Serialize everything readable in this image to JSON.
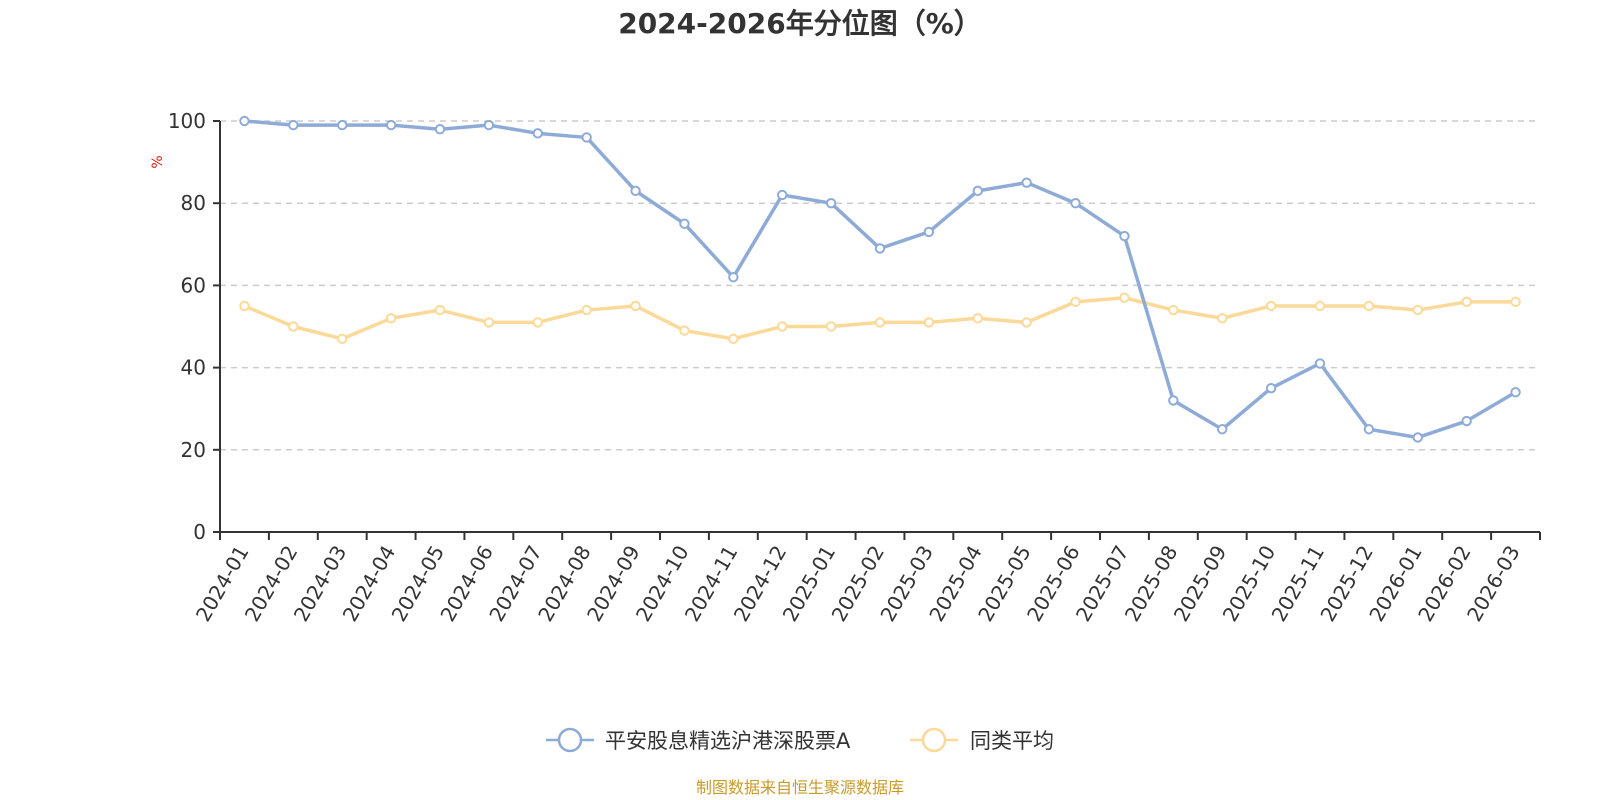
{
  "chart_data": {
    "type": "line",
    "title": "2024-2026年分位图（%）",
    "ylabel": "%",
    "xlabel": "",
    "ylim": [
      0,
      100
    ],
    "yticks": [
      0,
      20,
      40,
      60,
      80,
      100
    ],
    "grid": true,
    "legend_position": "bottom-center",
    "categories": [
      "2024-01",
      "2024-02",
      "2024-03",
      "2024-04",
      "2024-05",
      "2024-06",
      "2024-07",
      "2024-08",
      "2024-09",
      "2024-10",
      "2024-11",
      "2024-12",
      "2025-01",
      "2025-02",
      "2025-03",
      "2025-04",
      "2025-05",
      "2025-06",
      "2025-07",
      "2025-08",
      "2025-09",
      "2025-10",
      "2025-11",
      "2025-12",
      "2026-01",
      "2026-02",
      "2026-03"
    ],
    "series": [
      {
        "name": "平安股息精选沪港深股票A",
        "color": "#8eabd8",
        "values": [
          100,
          99,
          99,
          99,
          98,
          99,
          97,
          96,
          83,
          75,
          62,
          82,
          80,
          69,
          73,
          83,
          85,
          80,
          72,
          32,
          25,
          35,
          41,
          25,
          23,
          27,
          34
        ]
      },
      {
        "name": "同类平均",
        "color": "#fbd998",
        "values": [
          55,
          50,
          47,
          52,
          54,
          51,
          51,
          54,
          55,
          49,
          47,
          50,
          50,
          51,
          51,
          52,
          51,
          56,
          57,
          54,
          52,
          55,
          55,
          55,
          54,
          56,
          56
        ]
      }
    ],
    "source": "制图数据来自恒生聚源数据库"
  },
  "colors": {
    "axis": "#333333",
    "grid": "#cccccc",
    "unit": "#e01b1b",
    "source": "#c89a2a",
    "text": "#333333"
  }
}
